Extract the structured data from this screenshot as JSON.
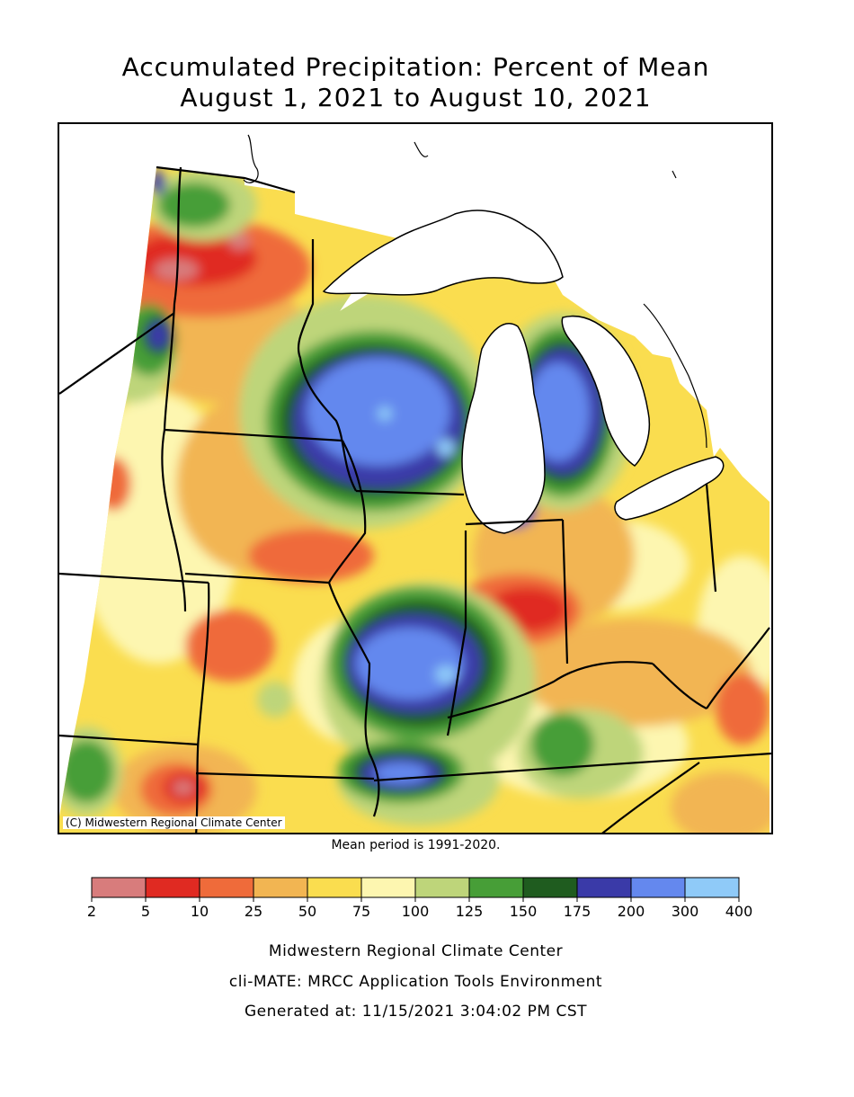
{
  "header": {
    "title_line1": "Accumulated Precipitation: Percent of Mean",
    "title_line2": "August 1, 2021 to August 10, 2021"
  },
  "map": {
    "copyright": "(C) Midwestern Regional Climate Center",
    "mean_period_note": "Mean period is 1991-2020.",
    "region": "Midwest United States"
  },
  "legend": {
    "breaks": [
      "2",
      "5",
      "10",
      "25",
      "50",
      "75",
      "100",
      "125",
      "150",
      "175",
      "200",
      "300",
      "400"
    ],
    "colors": [
      "#d87c7c",
      "#e02a22",
      "#ef6b3a",
      "#f2b552",
      "#fadd4f",
      "#fdf6b0",
      "#bed57a",
      "#479e37",
      "#1f5c1f",
      "#3a3aa8",
      "#6488ee",
      "#8fcaf8"
    ]
  },
  "footer": {
    "line1": "Midwestern Regional Climate Center",
    "line2": "cli-MATE: MRCC Application Tools Environment",
    "line3": "Generated at: 11/15/2021 3:04:02 PM CST"
  }
}
